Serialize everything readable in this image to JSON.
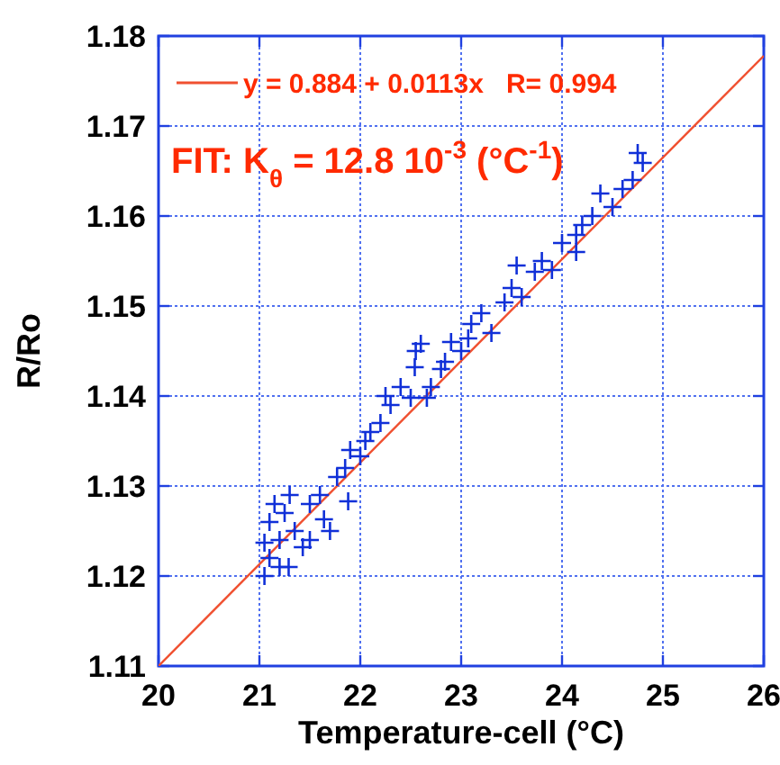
{
  "chart_data": {
    "type": "scatter",
    "xlabel": "Temperature-cell (°C)",
    "ylabel": "R/Ro",
    "annotations": [
      "FIT: K$_{θ}$ = 12.8 10$^{-3}$ (°C$^{-1}$)"
    ],
    "xlim": [
      20,
      26
    ],
    "ylim": [
      1.11,
      1.18
    ],
    "xticks": [
      20,
      21,
      22,
      23,
      24,
      25,
      26
    ],
    "yticks": [
      1.11,
      1.12,
      1.13,
      1.14,
      1.15,
      1.16,
      1.17,
      1.18
    ],
    "grid": true,
    "legend": "top left",
    "series": [
      {
        "type": "line",
        "marker": "none",
        "name": "y = 0.884 + 0.0113x   R= 0.994",
        "color": "#f05030",
        "x": [
          20,
          26
        ],
        "values": [
          1.11,
          1.1778
        ]
      },
      {
        "marker": "cross",
        "color": "#1030d8",
        "x": [
          21.05,
          21.05,
          21.1,
          21.1,
          21.15,
          21.2,
          21.2,
          21.29,
          21.25,
          21.3,
          21.35,
          21.43,
          21.5,
          21.5,
          21.6,
          21.64,
          21.7,
          21.77,
          21.88,
          21.85,
          21.9,
          22.0,
          22.05,
          22.1,
          22.2,
          22.25,
          22.3,
          22.4,
          22.5,
          22.54,
          22.55,
          22.6,
          22.66,
          22.7,
          22.8,
          22.84,
          22.9,
          23.0,
          23.07,
          23.1,
          23.2,
          23.3,
          23.43,
          23.5,
          23.55,
          23.6,
          23.73,
          23.8,
          23.9,
          24.0,
          24.14,
          24.14,
          24.2,
          24.3,
          24.38,
          24.5,
          24.6,
          24.7,
          24.8,
          24.75
        ],
        "values": [
          1.1237,
          1.12,
          1.122,
          1.126,
          1.128,
          1.124,
          1.121,
          1.121,
          1.127,
          1.129,
          1.125,
          1.1232,
          1.124,
          1.128,
          1.129,
          1.1263,
          1.125,
          1.131,
          1.1283,
          1.132,
          1.134,
          1.1333,
          1.135,
          1.136,
          1.137,
          1.14,
          1.139,
          1.141,
          1.1398,
          1.1432,
          1.145,
          1.1458,
          1.1398,
          1.141,
          1.143,
          1.1438,
          1.146,
          1.145,
          1.1464,
          1.148,
          1.1492,
          1.147,
          1.1504,
          1.152,
          1.1545,
          1.151,
          1.1538,
          1.155,
          1.154,
          1.157,
          1.156,
          1.1579,
          1.159,
          1.16,
          1.1625,
          1.161,
          1.163,
          1.164,
          1.1659,
          1.167
        ]
      }
    ]
  }
}
